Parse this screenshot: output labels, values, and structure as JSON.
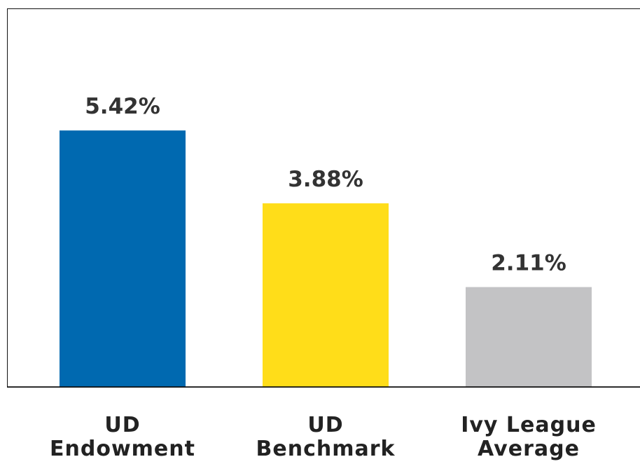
{
  "chart_data": {
    "type": "bar",
    "categories": [
      "UD Endowment",
      "UD Benchmark",
      "Ivy League Average"
    ],
    "values": [
      5.42,
      3.88,
      2.11
    ],
    "value_labels": [
      "5.42%",
      "3.88%",
      "2.11%"
    ],
    "colors": [
      "#0069b0",
      "#ffdd19",
      "#c3c3c5"
    ],
    "ylim": [
      0,
      8
    ]
  }
}
